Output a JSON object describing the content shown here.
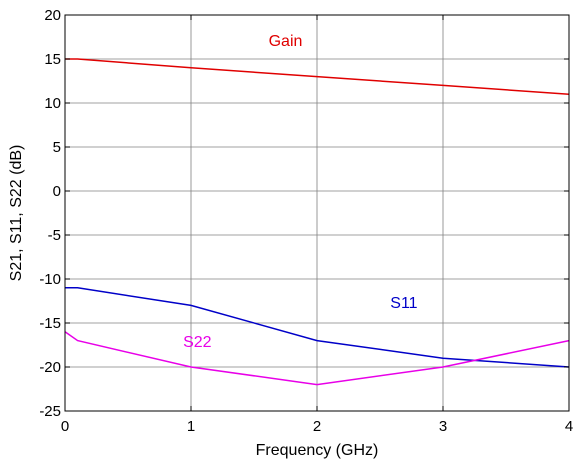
{
  "chart_data": {
    "type": "line",
    "title": "",
    "xlabel": "Frequency (GHz)",
    "ylabel": "S21, S11, S22 (dB)",
    "xlim": [
      0,
      4
    ],
    "ylim": [
      -25,
      20
    ],
    "xticks": [
      0,
      1,
      2,
      3,
      4
    ],
    "yticks": [
      -25,
      -20,
      -15,
      -10,
      -5,
      0,
      5,
      10,
      15,
      20
    ],
    "grid": true,
    "legend": "none",
    "series": [
      {
        "name": "Gain",
        "color": "#e00000",
        "x": [
          0,
          0.1,
          1,
          2,
          3,
          4
        ],
        "y": [
          15,
          15,
          14,
          13,
          12,
          11
        ]
      },
      {
        "name": "S11",
        "color": "#0000c8",
        "x": [
          0,
          0.1,
          1,
          2,
          3,
          4
        ],
        "y": [
          -11,
          -11,
          -13,
          -17,
          -19,
          -20
        ]
      },
      {
        "name": "S22",
        "color": "#e800e8",
        "x": [
          0,
          0.1,
          1,
          2,
          3,
          4
        ],
        "y": [
          -16,
          -17,
          -20,
          -22,
          -20,
          -17
        ]
      }
    ],
    "annotations": [
      {
        "text": "Gain",
        "x": 1.75,
        "y": 16.5,
        "color": "#e00000"
      },
      {
        "text": "S11",
        "x": 2.69,
        "y": -13.3,
        "color": "#0000c8"
      },
      {
        "text": "S22",
        "x": 1.05,
        "y": -17.7,
        "color": "#e800e8"
      }
    ]
  }
}
